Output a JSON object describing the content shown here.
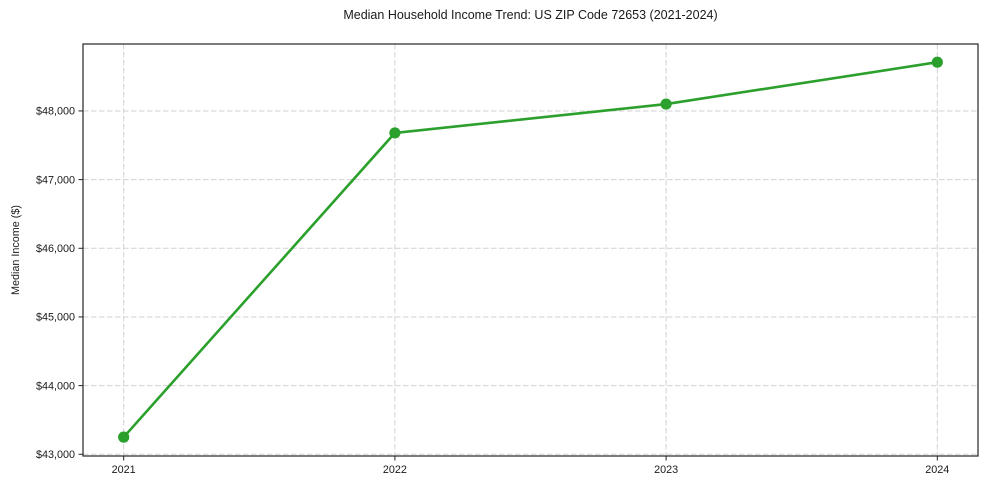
{
  "chart_data": {
    "type": "line",
    "title": "Median Household Income Trend: US ZIP Code 72653 (2021-2024)",
    "xlabel": "",
    "ylabel": "Median Income ($)",
    "x": [
      2021,
      2022,
      2023,
      2024
    ],
    "xticklabels": [
      "2021",
      "2022",
      "2023",
      "2024"
    ],
    "series": [
      {
        "name": "Median Household Income",
        "values": [
          43250,
          47680,
          48100,
          48710
        ]
      }
    ],
    "yticks": [
      43000,
      44000,
      45000,
      46000,
      47000,
      48000
    ],
    "yticklabels": [
      "$43,000",
      "$44,000",
      "$45,000",
      "$46,000",
      "$47,000",
      "$48,000"
    ],
    "xlim": [
      2020.85,
      2024.15
    ],
    "ylim": [
      42975,
      48975
    ],
    "grid": "dashed-both-axes",
    "legend": "none",
    "marker": "circle",
    "colors": {
      "line": "#2ca02c",
      "marker": "#2ca02c",
      "grid": "#d2d2d2",
      "axis": "#262626",
      "text": "#1a1a1a",
      "background": "#ffffff"
    }
  }
}
